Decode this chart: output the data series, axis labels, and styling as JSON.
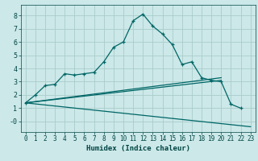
{
  "xlabel": "Humidex (Indice chaleur)",
  "background_color": "#cce8e8",
  "grid_color": "#aacccc",
  "line_color": "#006666",
  "xlim": [
    -0.5,
    23.5
  ],
  "ylim": [
    -0.8,
    8.8
  ],
  "xticks": [
    0,
    1,
    2,
    3,
    4,
    5,
    6,
    7,
    8,
    9,
    10,
    11,
    12,
    13,
    14,
    15,
    16,
    17,
    18,
    19,
    20,
    21,
    22,
    23
  ],
  "yticks": [
    0,
    1,
    2,
    3,
    4,
    5,
    6,
    7,
    8
  ],
  "curve_x": [
    0,
    1,
    2,
    3,
    4,
    5,
    6,
    7,
    8,
    9,
    10,
    11,
    12,
    13,
    14,
    15,
    16,
    17,
    18,
    19,
    20,
    21,
    22
  ],
  "curve_y": [
    1.4,
    2.0,
    2.7,
    2.8,
    3.6,
    3.5,
    3.6,
    3.7,
    4.5,
    5.6,
    6.0,
    7.6,
    8.1,
    7.2,
    6.6,
    5.8,
    4.3,
    4.5,
    3.3,
    3.1,
    3.0,
    1.3,
    1.0
  ],
  "line1_x": [
    0,
    20
  ],
  "line1_y": [
    1.4,
    3.3
  ],
  "line2_x": [
    0,
    20
  ],
  "line2_y": [
    1.4,
    3.1
  ],
  "line3_x": [
    0,
    23
  ],
  "line3_y": [
    1.4,
    -0.4
  ],
  "tick_fontsize": 5.5,
  "xlabel_fontsize": 6.5
}
